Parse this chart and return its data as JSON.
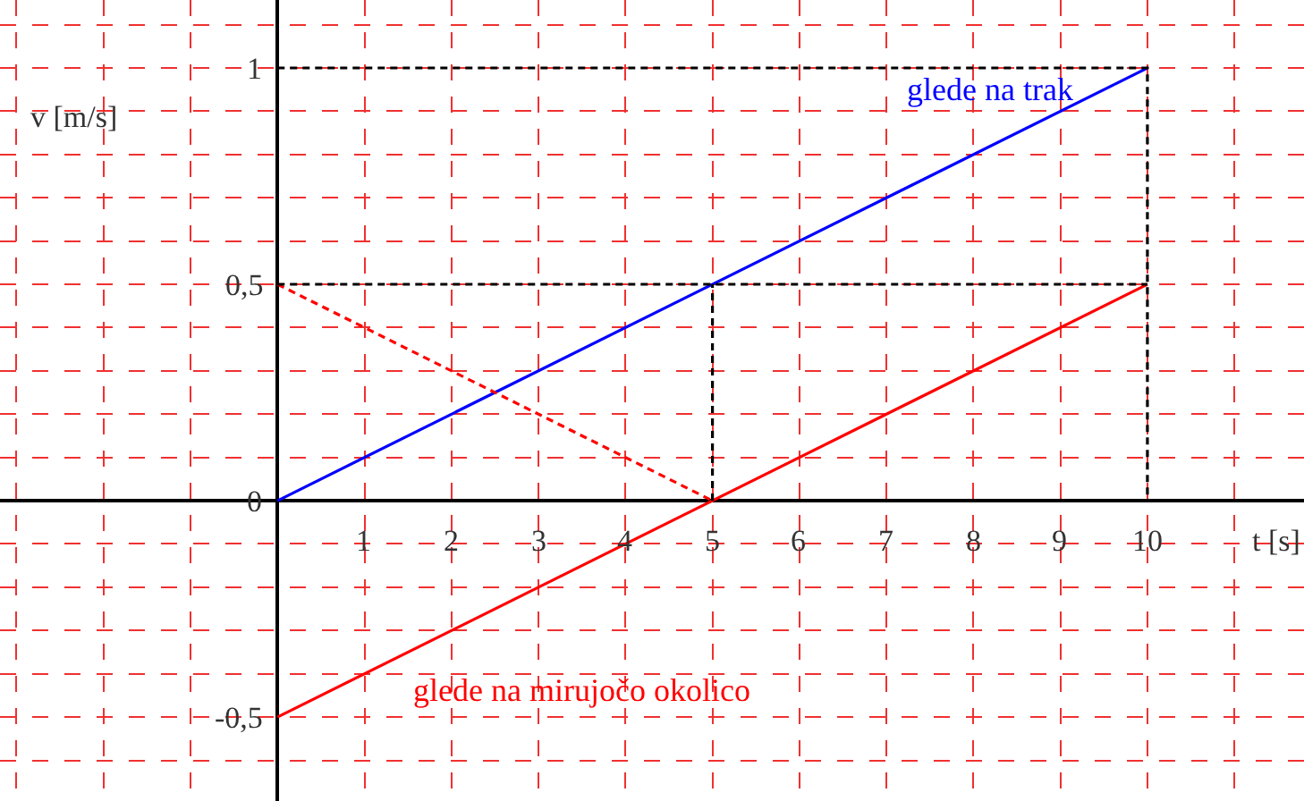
{
  "chart_data": {
    "type": "line",
    "xlabel": "t [s]",
    "ylabel": "v [m/s]",
    "xlim": [
      -3.19,
      11.8
    ],
    "ylim": [
      -0.694,
      1.157
    ],
    "xticks": [
      {
        "value": -3,
        "label": null
      },
      {
        "value": -2,
        "label": null
      },
      {
        "value": -1,
        "label": null
      },
      {
        "value": 0,
        "label": null
      },
      1,
      2,
      3,
      4,
      5,
      6,
      7,
      8,
      9,
      10,
      {
        "value": 11,
        "label": null
      }
    ],
    "yticks": [
      {
        "value": -0.6,
        "label": null
      },
      {
        "value": -0.5,
        "label": "-0,5"
      },
      {
        "value": -0.4,
        "label": null
      },
      {
        "value": -0.3,
        "label": null
      },
      {
        "value": -0.2,
        "label": null
      },
      {
        "value": -0.1,
        "label": null
      },
      0,
      {
        "value": 0.1,
        "label": null
      },
      {
        "value": 0.2,
        "label": null
      },
      {
        "value": 0.3,
        "label": null
      },
      {
        "value": 0.4,
        "label": null
      },
      {
        "value": 0.5,
        "label": "0,5"
      },
      {
        "value": 0.6,
        "label": null
      },
      {
        "value": 0.7,
        "label": null
      },
      {
        "value": 0.8,
        "label": null
      },
      {
        "value": 0.9,
        "label": null
      },
      1,
      {
        "value": 1.1,
        "label": null
      }
    ],
    "grid": true,
    "legend": false,
    "marker": "none",
    "series": [
      {
        "name": "glede na trak",
        "color": "#0000ff",
        "x": [
          0,
          10
        ],
        "values": [
          0,
          1
        ],
        "line_style": "solid"
      },
      {
        "name": "glede na mirujočo okolico",
        "color": "#ff0000",
        "x": [
          0,
          10
        ],
        "values": [
          -0.5,
          0.5
        ],
        "line_style": "solid"
      },
      {
        "color": "#ff0000",
        "x": [
          0,
          5
        ],
        "values": [
          0.5,
          0
        ],
        "line_style": "dashed"
      },
      {
        "color": "#000000",
        "x": [
          0,
          10,
          10
        ],
        "values": [
          1,
          1,
          0
        ],
        "line_style": "dashed"
      },
      {
        "color": "#000000",
        "x": [
          0,
          10
        ],
        "values": [
          0.5,
          0.5
        ],
        "line_style": "dashed"
      },
      {
        "color": "#000000",
        "x": [
          5,
          5
        ],
        "values": [
          0,
          0.5
        ],
        "line_style": "dashed"
      }
    ]
  }
}
